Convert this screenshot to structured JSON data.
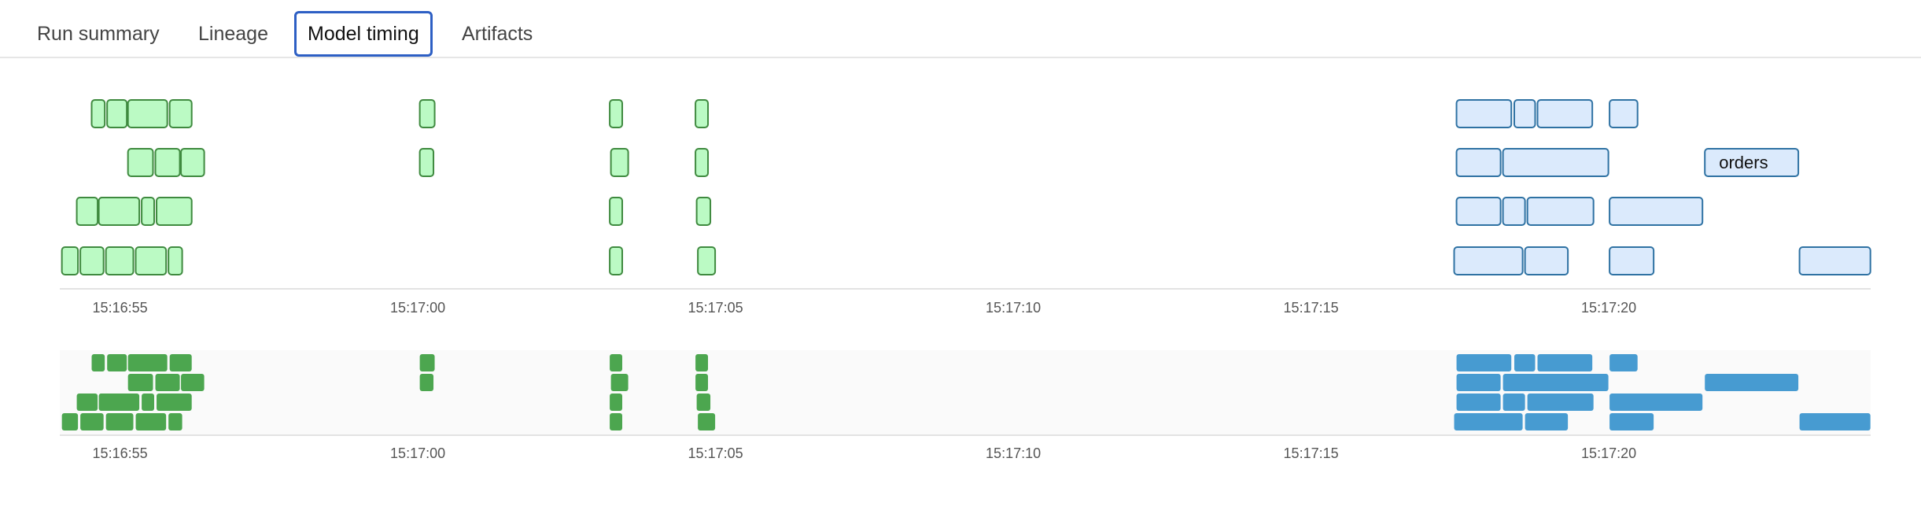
{
  "tabs": [
    {
      "label": "Run summary",
      "active": false
    },
    {
      "label": "Lineage",
      "active": false
    },
    {
      "label": "Model timing",
      "active": true
    },
    {
      "label": "Artifacts",
      "active": false
    }
  ],
  "colors": {
    "green_fill": "#bbfac4",
    "green_stroke": "#3f8a3f",
    "green_mini": "#4ca64f",
    "blue_fill": "#dbeafc",
    "blue_stroke": "#2f72a3",
    "blue_mini": "#479bd1",
    "tab_active_border": "#2d5fc4"
  },
  "chart_data": {
    "type": "gantt",
    "x_range": [
      "15:16:54.0",
      "15:17:24.4"
    ],
    "ticks": [
      "15:16:55",
      "15:17:00",
      "15:17:05",
      "15:17:10",
      "15:17:15",
      "15:17:20"
    ],
    "rows": [
      [
        {
          "start": "15:16:54.51",
          "end": "15:16:54.75",
          "color": "green"
        },
        {
          "start": "15:16:54.77",
          "end": "15:16:55.12",
          "color": "green"
        },
        {
          "start": "15:16:55.12",
          "end": "15:16:55.80",
          "color": "green"
        },
        {
          "start": "15:16:55.82",
          "end": "15:16:56.21",
          "color": "green"
        },
        {
          "start": "15:17:00.02",
          "end": "15:17:00.29",
          "color": "green"
        },
        {
          "start": "15:17:03.21",
          "end": "15:17:03.44",
          "color": "green"
        },
        {
          "start": "15:17:04.65",
          "end": "15:17:04.88",
          "color": "green"
        },
        {
          "start": "15:17:17.43",
          "end": "15:17:18.37",
          "color": "blue"
        },
        {
          "start": "15:17:18.40",
          "end": "15:17:18.77",
          "color": "blue"
        },
        {
          "start": "15:17:18.79",
          "end": "15:17:19.73",
          "color": "blue"
        },
        {
          "start": "15:17:20.00",
          "end": "15:17:20.49",
          "color": "blue"
        }
      ],
      [
        {
          "start": "15:16:55.12",
          "end": "15:16:55.56",
          "color": "green"
        },
        {
          "start": "15:16:55.58",
          "end": "15:16:56.01",
          "color": "green"
        },
        {
          "start": "15:16:56.01",
          "end": "15:16:56.42",
          "color": "green"
        },
        {
          "start": "15:17:00.02",
          "end": "15:17:00.27",
          "color": "green"
        },
        {
          "start": "15:17:03.23",
          "end": "15:17:03.54",
          "color": "green"
        },
        {
          "start": "15:17:04.65",
          "end": "15:17:04.88",
          "color": "green"
        },
        {
          "start": "15:17:17.43",
          "end": "15:17:18.19",
          "color": "blue"
        },
        {
          "start": "15:17:18.21",
          "end": "15:17:20.00",
          "color": "blue"
        },
        {
          "start": "15:17:21.60",
          "end": "15:17:23.19",
          "color": "blue",
          "label": "orders"
        }
      ],
      [
        {
          "start": "15:16:54.26",
          "end": "15:16:54.63",
          "color": "green"
        },
        {
          "start": "15:16:54.63",
          "end": "15:16:55.33",
          "color": "green"
        },
        {
          "start": "15:16:55.35",
          "end": "15:16:55.58",
          "color": "green"
        },
        {
          "start": "15:16:55.60",
          "end": "15:16:56.21",
          "color": "green"
        },
        {
          "start": "15:17:03.21",
          "end": "15:17:03.44",
          "color": "green"
        },
        {
          "start": "15:17:04.67",
          "end": "15:17:04.92",
          "color": "green"
        },
        {
          "start": "15:17:17.43",
          "end": "15:17:18.19",
          "color": "blue"
        },
        {
          "start": "15:17:18.21",
          "end": "15:17:18.60",
          "color": "blue"
        },
        {
          "start": "15:17:18.62",
          "end": "15:17:19.75",
          "color": "blue"
        },
        {
          "start": "15:17:20.00",
          "end": "15:17:21.58",
          "color": "blue"
        }
      ],
      [
        {
          "start": "15:16:54.01",
          "end": "15:16:54.30",
          "color": "green"
        },
        {
          "start": "15:16:54.32",
          "end": "15:16:54.73",
          "color": "green"
        },
        {
          "start": "15:16:54.75",
          "end": "15:16:55.23",
          "color": "green"
        },
        {
          "start": "15:16:55.25",
          "end": "15:16:55.78",
          "color": "green"
        },
        {
          "start": "15:16:55.80",
          "end": "15:16:56.05",
          "color": "green"
        },
        {
          "start": "15:17:03.21",
          "end": "15:17:03.44",
          "color": "green"
        },
        {
          "start": "15:17:04.69",
          "end": "15:17:05.00",
          "color": "green"
        },
        {
          "start": "15:17:17.39",
          "end": "15:17:18.56",
          "color": "blue"
        },
        {
          "start": "15:17:18.58",
          "end": "15:17:19.32",
          "color": "blue"
        },
        {
          "start": "15:17:20.00",
          "end": "15:17:20.76",
          "color": "blue"
        },
        {
          "start": "15:17:23.19",
          "end": "15:17:24.40",
          "color": "blue"
        }
      ]
    ]
  }
}
